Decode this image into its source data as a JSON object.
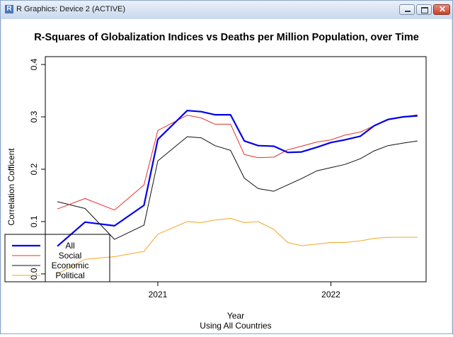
{
  "window": {
    "title": "R Graphics: Device 2 (ACTIVE)",
    "app_icon_letter": "R",
    "buttons": {
      "minimize": "minimize",
      "maximize": "maximize",
      "close": "✕"
    }
  },
  "chart_data": {
    "type": "line",
    "title": "R-Squares of Globalization Indices vs Deaths per Million Population, over Time",
    "xlabel": "Year",
    "subtitle": "Using All Countries",
    "ylabel": "Correlation Cofficent",
    "xlim": [
      2020.35,
      2022.55
    ],
    "ylim": [
      -0.015,
      0.415
    ],
    "x_ticks": [
      {
        "value": 2021,
        "label": "2021"
      },
      {
        "value": 2022,
        "label": "2022"
      }
    ],
    "y_ticks": [
      {
        "value": 0.0,
        "label": "0.0"
      },
      {
        "value": 0.1,
        "label": "0.1"
      },
      {
        "value": 0.2,
        "label": "0.2"
      },
      {
        "value": 0.3,
        "label": "0.3"
      },
      {
        "value": 0.4,
        "label": "0.4"
      }
    ],
    "legend_position": "bottom-left",
    "series": [
      {
        "name": "All",
        "color": "#0000ee",
        "width": 2.2,
        "x": [
          2020.42,
          2020.58,
          2020.75,
          2020.92,
          2021.0,
          2021.17,
          2021.25,
          2021.33,
          2021.42,
          2021.5,
          2021.58,
          2021.67,
          2021.75,
          2021.83,
          2021.92,
          2022.0,
          2022.08,
          2022.17,
          2022.25,
          2022.33,
          2022.42,
          2022.5
        ],
        "values": [
          0.053,
          0.099,
          0.092,
          0.131,
          0.257,
          0.312,
          0.31,
          0.304,
          0.304,
          0.254,
          0.245,
          0.244,
          0.232,
          0.233,
          0.242,
          0.251,
          0.256,
          0.263,
          0.283,
          0.295,
          0.3,
          0.302
        ]
      },
      {
        "name": "Social",
        "color": "#e8302c",
        "width": 1,
        "x": [
          2020.42,
          2020.58,
          2020.75,
          2020.92,
          2021.0,
          2021.17,
          2021.25,
          2021.33,
          2021.42,
          2021.5,
          2021.58,
          2021.67,
          2021.75,
          2021.83,
          2021.92,
          2022.0,
          2022.08,
          2022.17,
          2022.25,
          2022.33,
          2022.42,
          2022.5
        ],
        "values": [
          0.124,
          0.144,
          0.122,
          0.17,
          0.274,
          0.303,
          0.298,
          0.286,
          0.286,
          0.228,
          0.222,
          0.223,
          0.237,
          0.244,
          0.252,
          0.256,
          0.265,
          0.271,
          0.283,
          0.294,
          0.3,
          0.304
        ]
      },
      {
        "name": "Economic",
        "color": "#111111",
        "width": 1,
        "x": [
          2020.42,
          2020.58,
          2020.75,
          2020.92,
          2021.0,
          2021.17,
          2021.25,
          2021.33,
          2021.42,
          2021.5,
          2021.58,
          2021.67,
          2021.75,
          2021.83,
          2021.92,
          2022.0,
          2022.08,
          2022.17,
          2022.25,
          2022.33,
          2022.42,
          2022.5
        ],
        "values": [
          0.138,
          0.125,
          0.066,
          0.093,
          0.216,
          0.262,
          0.26,
          0.245,
          0.236,
          0.183,
          0.163,
          0.158,
          0.17,
          0.182,
          0.197,
          0.203,
          0.209,
          0.22,
          0.235,
          0.245,
          0.25,
          0.254
        ]
      },
      {
        "name": "Political",
        "color": "#f5a623",
        "width": 1,
        "x": [
          2020.42,
          2020.58,
          2020.75,
          2020.92,
          2021.0,
          2021.17,
          2021.25,
          2021.33,
          2021.42,
          2021.5,
          2021.58,
          2021.67,
          2021.75,
          2021.83,
          2021.92,
          2022.0,
          2022.08,
          2022.17,
          2022.25,
          2022.33,
          2022.42,
          2022.5
        ],
        "values": [
          0.0,
          0.028,
          0.033,
          0.043,
          0.076,
          0.1,
          0.098,
          0.103,
          0.106,
          0.098,
          0.1,
          0.085,
          0.06,
          0.054,
          0.057,
          0.06,
          0.06,
          0.063,
          0.068,
          0.07,
          0.07,
          0.07
        ]
      }
    ]
  }
}
